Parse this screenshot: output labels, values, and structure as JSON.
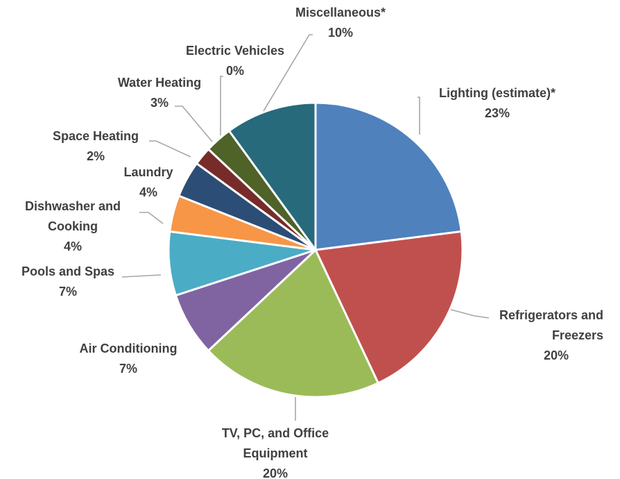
{
  "chart_data": {
    "type": "pie",
    "start_angle_deg": 0,
    "direction": "clockwise",
    "slices": [
      {
        "label": "Lighting (estimate)*",
        "value": 23,
        "value_label": "23%",
        "color": "#4f81bd"
      },
      {
        "label": "Refrigerators and Freezers",
        "value": 20,
        "value_label": "20%",
        "color": "#c0504d"
      },
      {
        "label": "TV, PC, and Office Equipment",
        "value": 20,
        "value_label": "20%",
        "color": "#9bbb59"
      },
      {
        "label": "Air Conditioning",
        "value": 7,
        "value_label": "7%",
        "color": "#8064a2"
      },
      {
        "label": "Pools and Spas",
        "value": 7,
        "value_label": "7%",
        "color": "#4bacc6"
      },
      {
        "label": "Dishwasher and Cooking",
        "value": 4,
        "value_label": "4%",
        "color": "#f79646"
      },
      {
        "label": "Laundry",
        "value": 4,
        "value_label": "4%",
        "color": "#2c4d75"
      },
      {
        "label": "Space Heating",
        "value": 2,
        "value_label": "2%",
        "color": "#772c2a"
      },
      {
        "label": "Water Heating",
        "value": 3,
        "value_label": "3%",
        "color": "#4f6228"
      },
      {
        "label": "Electric Vehicles",
        "value": 0,
        "value_label": "0%",
        "color": "#5f497a"
      },
      {
        "label": "Miscellaneous*",
        "value": 10,
        "value_label": "10%",
        "color": "#276a7c"
      }
    ]
  }
}
